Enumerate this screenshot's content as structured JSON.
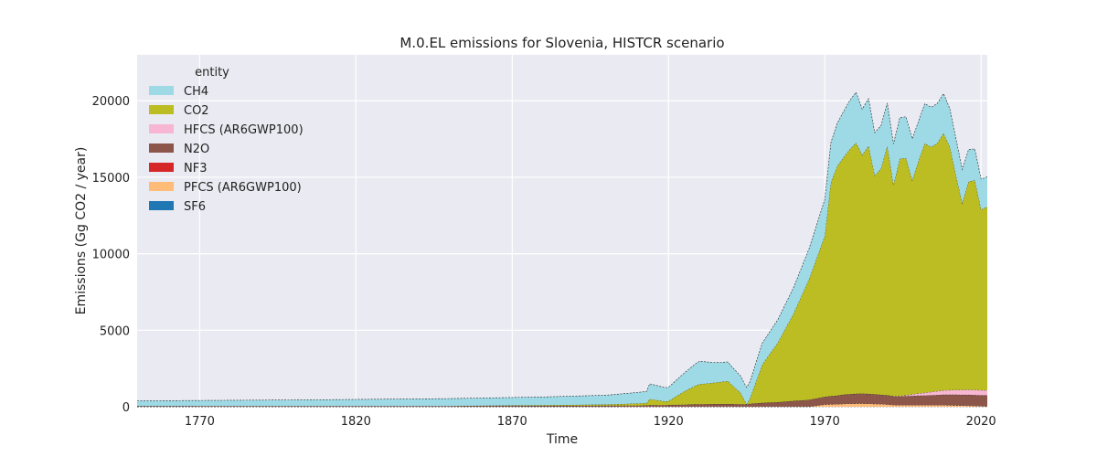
{
  "chart_data": {
    "type": "area",
    "stacked": true,
    "title": "M.0.EL emissions for Slovenia, HISTCR scenario",
    "xlabel": "Time",
    "ylabel": "Emissions (Gg CO2 / year)",
    "xlim": [
      1750,
      2022
    ],
    "ylim": [
      0,
      23000
    ],
    "x_ticks": [
      1770,
      1820,
      1870,
      1920,
      1970,
      2020
    ],
    "y_ticks": [
      0,
      5000,
      10000,
      15000,
      20000
    ],
    "grid": true,
    "background": "#eaeaf2",
    "legend": {
      "title": "entity",
      "placement": "top-left"
    },
    "x": [
      1750,
      1800,
      1850,
      1880,
      1900,
      1910,
      1913,
      1914,
      1919,
      1920,
      1925,
      1929,
      1930,
      1935,
      1939,
      1940,
      1943,
      1945,
      1946,
      1950,
      1955,
      1960,
      1965,
      1970,
      1972,
      1974,
      1976,
      1978,
      1980,
      1982,
      1984,
      1986,
      1988,
      1990,
      1992,
      1994,
      1996,
      1998,
      2000,
      2002,
      2004,
      2006,
      2008,
      2010,
      2012,
      2014,
      2016,
      2018,
      2020,
      2022
    ],
    "series": [
      {
        "name": "SF6",
        "color": "#1f77b4",
        "values": [
          0,
          0,
          0,
          0,
          0,
          0,
          0,
          0,
          0,
          0,
          0,
          0,
          0,
          0,
          0,
          0,
          0,
          0,
          0,
          0,
          0,
          0,
          0,
          0,
          0,
          0,
          0,
          0,
          0,
          0,
          0,
          0,
          0,
          0,
          0,
          0,
          0,
          0,
          0,
          0,
          0,
          0,
          0,
          0,
          0,
          0,
          0,
          0,
          0,
          0
        ]
      },
      {
        "name": "PFCS (AR6GWP100)",
        "color": "#ffbb78",
        "values": [
          0,
          0,
          0,
          0,
          0,
          0,
          0,
          0,
          0,
          0,
          0,
          0,
          0,
          0,
          0,
          0,
          0,
          0,
          0,
          0,
          0,
          0,
          0,
          150,
          160,
          170,
          190,
          200,
          210,
          210,
          200,
          190,
          180,
          150,
          120,
          110,
          110,
          110,
          110,
          110,
          110,
          110,
          110,
          100,
          90,
          80,
          70,
          60,
          40,
          30
        ]
      },
      {
        "name": "NF3",
        "color": "#d62728",
        "values": [
          0,
          0,
          0,
          0,
          0,
          0,
          0,
          0,
          0,
          0,
          0,
          0,
          0,
          0,
          0,
          0,
          0,
          0,
          0,
          0,
          0,
          0,
          0,
          0,
          0,
          0,
          0,
          0,
          0,
          0,
          0,
          0,
          0,
          0,
          0,
          0,
          0,
          0,
          0,
          0,
          0,
          0,
          0,
          0,
          0,
          0,
          0,
          0,
          0,
          0
        ]
      },
      {
        "name": "N2O",
        "color": "#8c564b",
        "values": [
          40,
          45,
          50,
          60,
          70,
          80,
          90,
          100,
          110,
          120,
          140,
          160,
          170,
          180,
          180,
          180,
          170,
          150,
          200,
          250,
          300,
          380,
          450,
          500,
          530,
          560,
          600,
          620,
          640,
          650,
          640,
          620,
          600,
          600,
          560,
          560,
          580,
          600,
          620,
          620,
          640,
          660,
          680,
          690,
          700,
          700,
          710,
          710,
          710,
          720
        ]
      },
      {
        "name": "HFCS (AR6GWP100)",
        "color": "#f7b6d2",
        "values": [
          0,
          0,
          0,
          0,
          0,
          0,
          0,
          0,
          0,
          0,
          0,
          0,
          0,
          0,
          0,
          0,
          0,
          0,
          0,
          0,
          0,
          0,
          0,
          0,
          0,
          0,
          0,
          0,
          0,
          0,
          0,
          0,
          0,
          0,
          10,
          30,
          60,
          100,
          140,
          180,
          220,
          250,
          280,
          300,
          310,
          320,
          330,
          330,
          330,
          330
        ]
      },
      {
        "name": "CO2",
        "color": "#bcbd22",
        "values": [
          0,
          0,
          0,
          40,
          80,
          130,
          150,
          400,
          230,
          250,
          850,
          1250,
          1300,
          1400,
          1500,
          1300,
          750,
          10,
          300,
          2500,
          3900,
          5700,
          7900,
          10500,
          14000,
          15000,
          15500,
          16000,
          16400,
          15600,
          16200,
          14300,
          14800,
          16300,
          13800,
          15500,
          15500,
          14000,
          15200,
          16300,
          16000,
          16200,
          16800,
          15900,
          14000,
          12200,
          13600,
          13700,
          11800,
          12000
        ]
      },
      {
        "name": "CH4",
        "color": "#9edae5",
        "values": [
          350,
          400,
          480,
          540,
          600,
          720,
          760,
          1000,
          900,
          900,
          1200,
          1450,
          1500,
          1300,
          1250,
          1200,
          1100,
          1100,
          1100,
          1400,
          1500,
          1700,
          2000,
          2400,
          2600,
          2800,
          3000,
          3200,
          3300,
          3000,
          3100,
          2800,
          2800,
          2800,
          2700,
          2700,
          2700,
          2700,
          2600,
          2600,
          2600,
          2600,
          2600,
          2500,
          2400,
          2200,
          2100,
          2050,
          2000,
          1950
        ]
      }
    ]
  }
}
